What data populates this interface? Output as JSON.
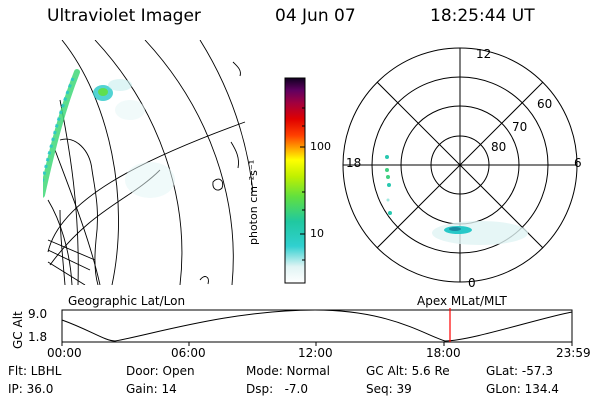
{
  "header": {
    "title": "Ultraviolet Imager",
    "date": "04 Jun 07",
    "time": "18:25:44 UT"
  },
  "colorbar": {
    "unit_label": "photon cm⁻²s⁻¹",
    "ticks": [
      "100",
      "10"
    ]
  },
  "polar_plot": {
    "mlt_labels": [
      "12",
      "18",
      "6",
      "0"
    ],
    "mlat_labels": [
      "60",
      "70",
      "80"
    ]
  },
  "timeline": {
    "left_label": "Geographic Lat/Lon",
    "right_label": "Apex MLat/MLT",
    "axis_title": "GC Alt",
    "y_ticks": [
      "9.0",
      "1.8"
    ],
    "x_ticks": [
      "00:00",
      "06:00",
      "12:00",
      "18:00",
      "23:59"
    ],
    "marker_color": "#ff0000"
  },
  "status": {
    "flt": "Flt: LBHL",
    "ip": "IP: 36.0",
    "door": "Door: Open",
    "gain": "Gain: 14",
    "mode": "Mode: Normal",
    "dsp": "Dsp:   -7.0",
    "gc_alt": "GC Alt: 5.6 Re",
    "seq": "Seq: 39",
    "glat": "GLat: -57.3",
    "glon": "GLon: 134.4"
  }
}
